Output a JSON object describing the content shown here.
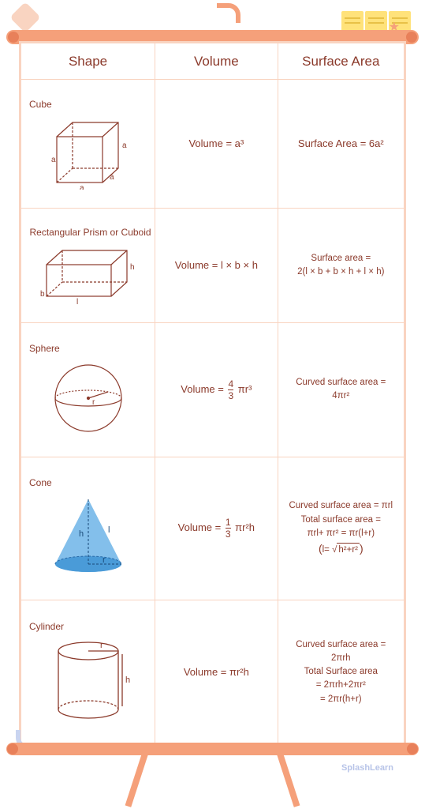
{
  "headers": {
    "shape": "Shape",
    "volume": "Volume",
    "surface_area": "Surface Area"
  },
  "rows": [
    {
      "name": "Cube",
      "volume_html": "Volume = a³",
      "sa_html": "Surface Area = 6a²"
    },
    {
      "name": "Rectangular Prism or Cuboid",
      "volume_html": "Volume = l × b × h",
      "sa_html": "Surface area =<br>2(l × b + b × h + l × h)"
    },
    {
      "name": "Sphere",
      "volume_html": "Volume = <span class='frac'><span class='num'>4</span><span class='den'>3</span></span> πr³",
      "sa_html": "Curved surface area =<br>4πr²"
    },
    {
      "name": "Cone",
      "volume_html": "Volume = <span class='frac'><span class='num'>1</span><span class='den'>3</span></span> πr²h",
      "sa_html": "Curved surface area = πrl<br>Total surface area =<br>πrl+ πr² = πr(l+r)<br><span style='font-size:14px'>(</span>l= √<span class='sqrt'>h²+r²</span><span style='font-size:14px'>)</span>"
    },
    {
      "name": "Cylinder",
      "volume_html": "Volume = πr²h",
      "sa_html": "Curved surface area =<br>2πrh<br>Total Surface area<br>= 2πrh+2πr²<br>= 2πr(h+r)"
    }
  ],
  "watermark": "SplashLearn",
  "colors": {
    "border": "#f9d4c1",
    "text": "#8b3a2b",
    "easel": "#f5a07a",
    "cone_fill": "#6db4e8",
    "line": "#8b3a2b"
  }
}
